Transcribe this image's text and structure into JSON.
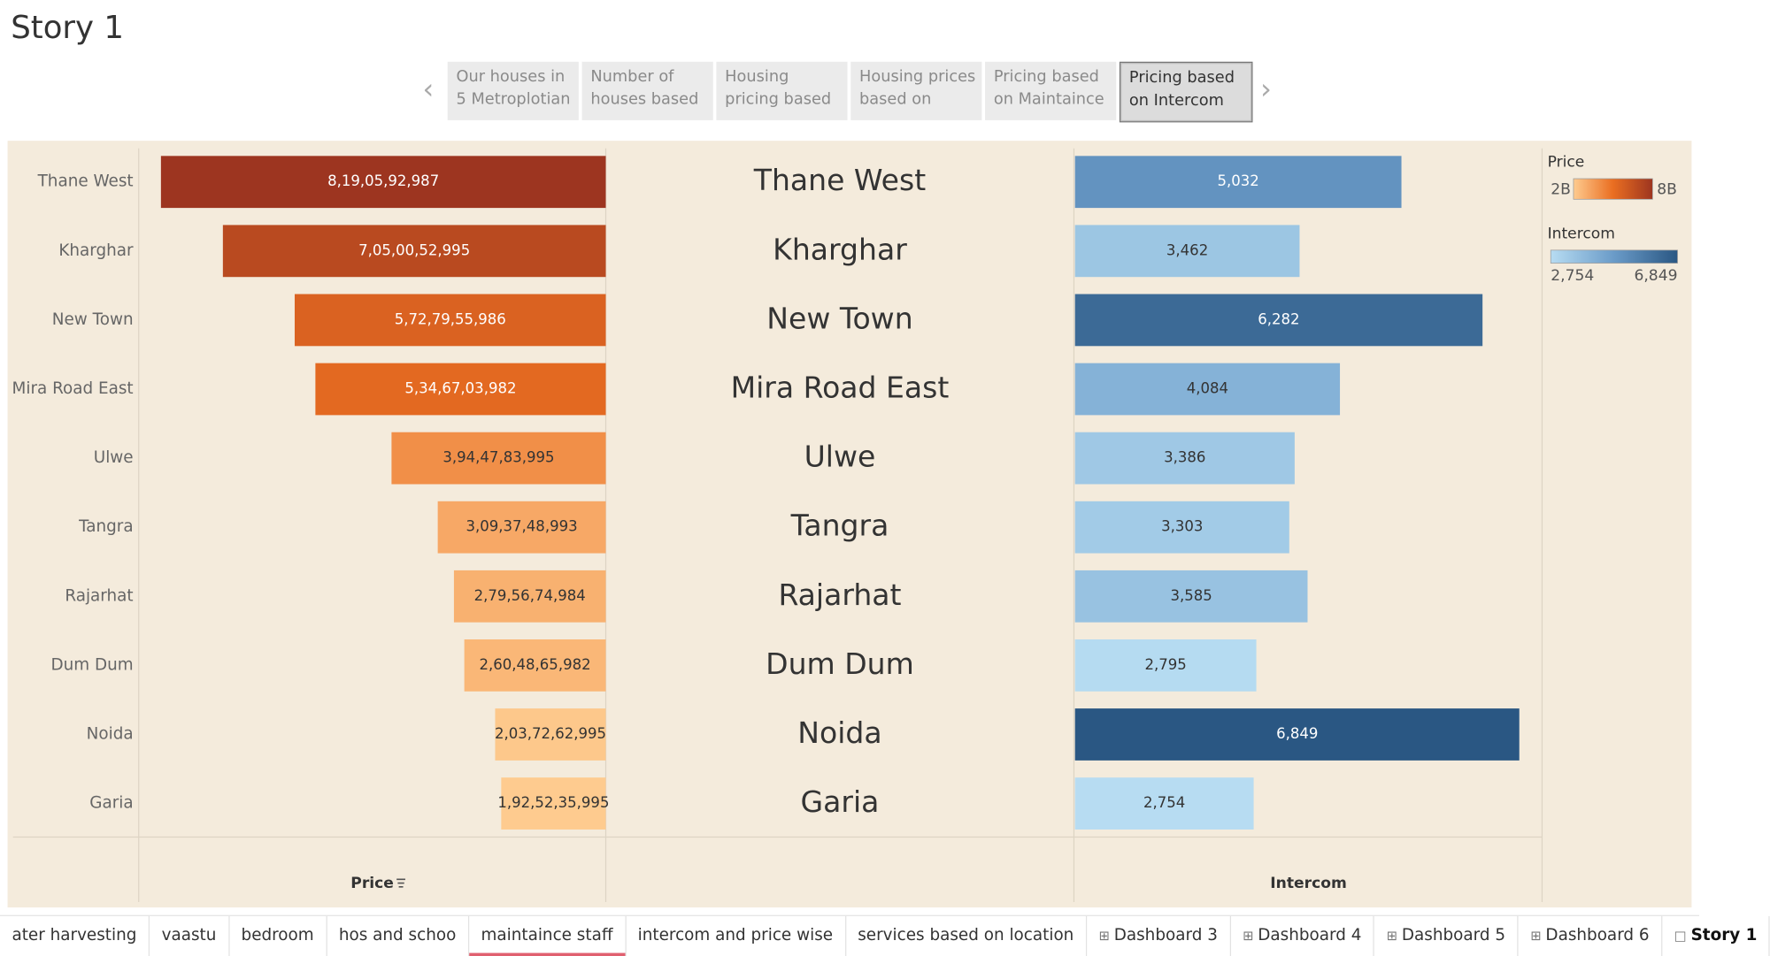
{
  "title": "Story 1",
  "story_points": [
    "Our houses in 5 Metroplotian",
    "Number of houses based",
    "Housing pricing based",
    "Housing prices based on",
    "Pricing based on Maintaince",
    "Pricing based on Intercom"
  ],
  "active_story_point": 5,
  "chart_data": {
    "type": "bar",
    "categories": [
      "Thane West",
      "Kharghar",
      "New Town",
      "Mira Road East",
      "Ulwe",
      "Tangra",
      "Rajarhat",
      "Dum Dum",
      "Noida",
      "Garia"
    ],
    "series": [
      {
        "name": "Price",
        "direction": "left",
        "xlim": [
          0,
          8600000000
        ],
        "colors": [
          "#fecb8f",
          "#ea6e21",
          "#9d3520"
        ],
        "legend_ticks": [
          {
            "value": 2000000000,
            "label": "2B"
          },
          {
            "value": 8000000000,
            "label": "8B"
          }
        ],
        "values": [
          8190592987,
          7050052995,
          5727955986,
          5346703982,
          3944783995,
          3093748993,
          2795674984,
          2604865982,
          2037262995,
          1925235995
        ],
        "value_labels": [
          "8,19,05,92,987",
          "7,05,00,52,995",
          "5,72,79,55,986",
          "5,34,67,03,982",
          "3,94,47,83,995",
          "3,09,37,48,993",
          "2,79,56,74,984",
          "2,60,48,65,982",
          "2,03,72,62,995",
          "1,92,52,35,995"
        ]
      },
      {
        "name": "Intercom",
        "direction": "right",
        "xlim": [
          0,
          7200
        ],
        "colors": [
          "#b7dcf2",
          "#6a9bc8",
          "#2a5783"
        ],
        "legend_ticks": [
          {
            "value": 2754,
            "label": "2,754"
          },
          {
            "value": 6849,
            "label": "6,849"
          }
        ],
        "values": [
          5032,
          3462,
          6282,
          4084,
          3386,
          3303,
          3585,
          2795,
          6849,
          2754
        ],
        "value_labels": [
          "5,032",
          "3,462",
          "6,282",
          "4,084",
          "3,386",
          "3,303",
          "3,585",
          "2,795",
          "6,849",
          "2,754"
        ]
      }
    ]
  },
  "tabs": [
    {
      "label": "ater harvesting",
      "kind": "sheet"
    },
    {
      "label": "vaastu",
      "kind": "sheet"
    },
    {
      "label": "bedroom",
      "kind": "sheet"
    },
    {
      "label": "hos and schoo",
      "kind": "sheet"
    },
    {
      "label": "maintaince staff",
      "kind": "sheet"
    },
    {
      "label": "intercom and price wise",
      "kind": "sheet"
    },
    {
      "label": "services based on location",
      "kind": "sheet"
    },
    {
      "label": "Dashboard 3",
      "kind": "dashboard"
    },
    {
      "label": "Dashboard 4",
      "kind": "dashboard"
    },
    {
      "label": "Dashboard 5",
      "kind": "dashboard"
    },
    {
      "label": "Dashboard 6",
      "kind": "dashboard"
    },
    {
      "label": "Story 1",
      "kind": "story"
    }
  ],
  "highlighted_tab": 4,
  "current_tab": 11
}
